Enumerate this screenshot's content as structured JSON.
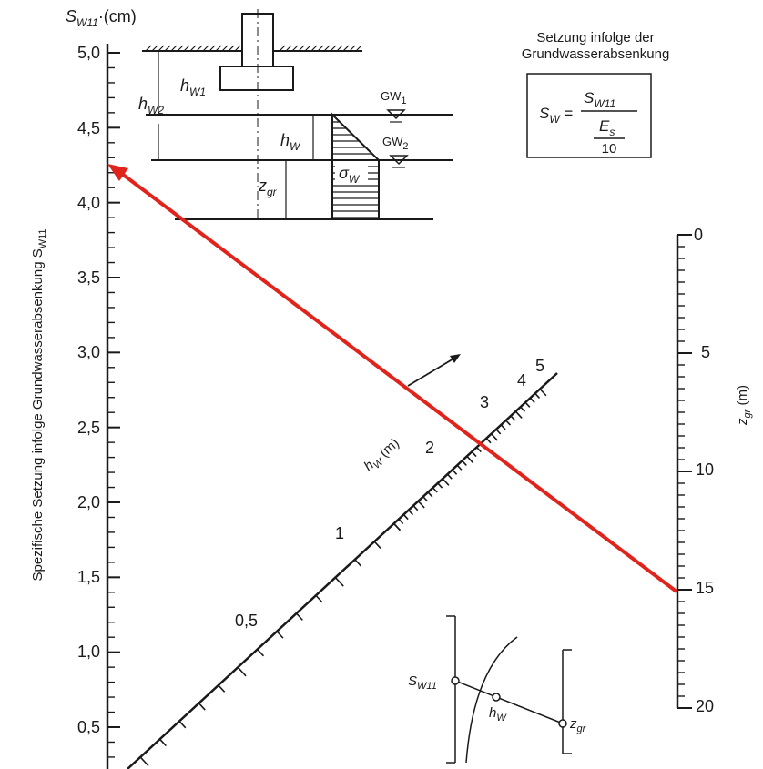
{
  "left_axis": {
    "unit_label_main": "S",
    "unit_label_sub": "W11",
    "unit_label_suffix": "·(cm)",
    "title": "Spezifische Setzung infolge Grundwasserabsenkung S",
    "title_sub": "W11",
    "ticks": [
      "5,0",
      "4,5",
      "4,0",
      "3,5",
      "3,0",
      "2,5",
      "2,0",
      "1,5",
      "1,0",
      "0,5"
    ]
  },
  "right_axis": {
    "unit_main": "z",
    "unit_sub": "gr",
    "unit_suffix": " (m)",
    "ticks": [
      "0",
      "5",
      "10",
      "15",
      "20"
    ]
  },
  "diag_axis": {
    "label_main": "h",
    "label_sub": "W",
    "label_suffix": " (m)",
    "ticks": [
      "0,5",
      "1",
      "2",
      "3",
      "4",
      "5"
    ]
  },
  "formula": {
    "title_line1": "Setzung infolge der",
    "title_line2": "Grundwasserabsenkung",
    "lhs_main": "S",
    "lhs_sub": "W",
    "eq": " = ",
    "num_main": "S",
    "num_sub": "W11",
    "den_main": "E",
    "den_sub": "s",
    "den_value": "10"
  },
  "foundation_sketch": {
    "hw1_main": "h",
    "hw1_sub": "W1",
    "hw2_main": "h",
    "hw2_sub": "W2",
    "hw_main": "h",
    "hw_sub": "W",
    "zgr_main": "z",
    "zgr_sub": "gr",
    "gw1_main": "GW",
    "gw1_sub": "1",
    "gw2_main": "GW",
    "gw2_sub": "2",
    "sigma_main": "σ",
    "sigma_sub": "W"
  },
  "key_sketch": {
    "s_main": "S",
    "s_sub": "W11",
    "h_main": "h",
    "h_sub": "W",
    "z_main": "z",
    "z_sub": "gr"
  },
  "highlight_color": "#e0241b",
  "ink_color": "#1a1a1a"
}
